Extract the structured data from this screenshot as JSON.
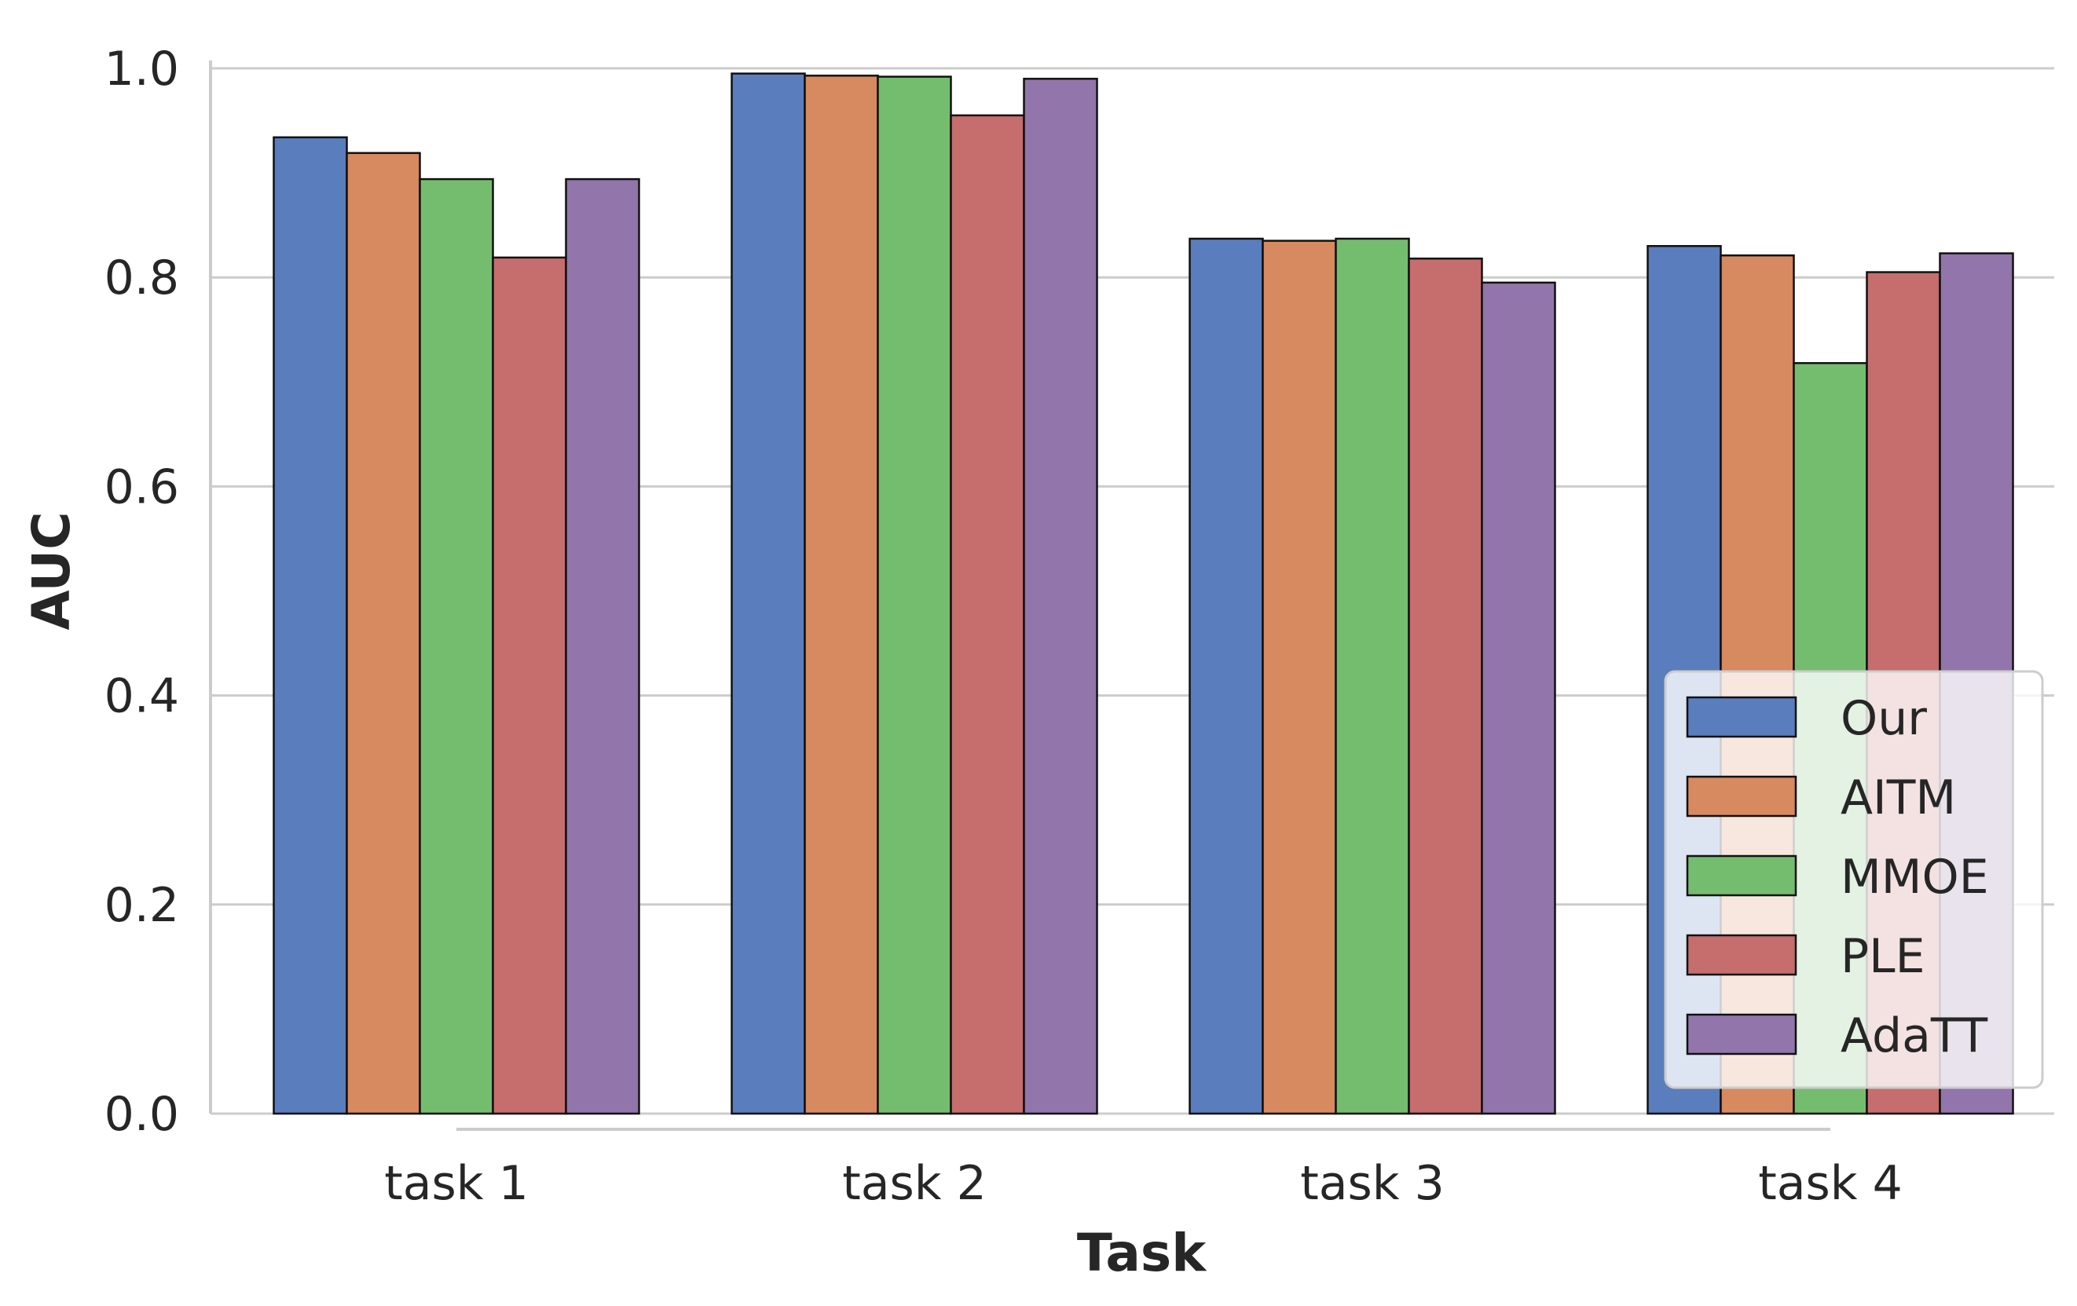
{
  "chart_data": {
    "type": "bar",
    "title": "",
    "xlabel": "Task",
    "ylabel": "AUC",
    "categories": [
      "task 1",
      "task 2",
      "task 3",
      "task 4"
    ],
    "series": [
      {
        "name": "Our",
        "color": "#5a7dbd",
        "values": [
          0.934,
          0.995,
          0.837,
          0.83
        ]
      },
      {
        "name": "AITM",
        "color": "#d7895f",
        "values": [
          0.919,
          0.993,
          0.835,
          0.821
        ]
      },
      {
        "name": "MMOE",
        "color": "#75bd6e",
        "values": [
          0.894,
          0.992,
          0.837,
          0.718
        ]
      },
      {
        "name": "PLE",
        "color": "#c66d6d",
        "values": [
          0.819,
          0.955,
          0.818,
          0.805
        ]
      },
      {
        "name": "AdaTT",
        "color": "#9275aa",
        "values": [
          0.894,
          0.99,
          0.795,
          0.823
        ]
      }
    ],
    "ylim": [
      0.0,
      1.0
    ],
    "yticks": [
      "0.0",
      "0.2",
      "0.4",
      "0.6",
      "0.8",
      "1.0"
    ],
    "grid": "horizontal",
    "legend_position": "lower-right"
  }
}
